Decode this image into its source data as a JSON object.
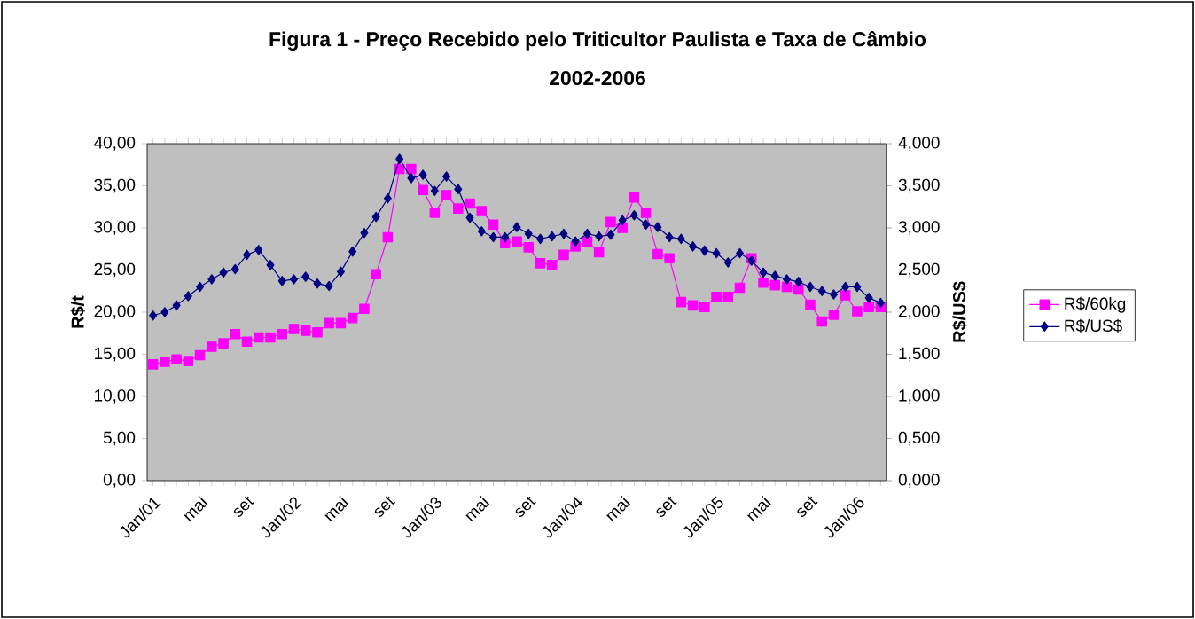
{
  "chart_data": {
    "type": "line",
    "title": "Figura 1 - Preço Recebido pelo Triticultor Paulista e Taxa de Câmbio",
    "subtitle": "2002-2006",
    "ylabel": "R$/t",
    "y2label": "R$/US$",
    "categories": [
      "Jan/01",
      null,
      null,
      null,
      "mai",
      null,
      null,
      null,
      "set",
      null,
      null,
      null,
      "Jan/02",
      null,
      null,
      null,
      "mai",
      null,
      null,
      null,
      "set",
      null,
      null,
      null,
      "Jan/03",
      null,
      null,
      null,
      "mai",
      null,
      null,
      null,
      "set",
      null,
      null,
      null,
      "Jan/04",
      null,
      null,
      null,
      "mai",
      null,
      null,
      null,
      "set",
      null,
      null,
      null,
      "Jan/05",
      null,
      null,
      null,
      "mai",
      null,
      null,
      null,
      "set",
      null,
      null,
      null,
      "Jan/06",
      null,
      null
    ],
    "series": [
      {
        "name": "R$/60kg",
        "color": "#ff00ff",
        "marker": "square",
        "values": [
          13.8,
          14.1,
          14.4,
          14.2,
          14.9,
          15.9,
          16.3,
          17.4,
          16.5,
          17.0,
          17.0,
          17.4,
          18.0,
          17.8,
          17.6,
          18.7,
          18.7,
          19.3,
          20.4,
          24.5,
          28.9,
          37.0,
          37.0,
          34.5,
          31.8,
          33.9,
          32.3,
          32.9,
          32.0,
          30.4,
          28.2,
          28.4,
          27.7,
          25.8,
          25.6,
          26.8,
          27.8,
          28.4,
          27.1,
          30.7,
          30.0,
          33.6,
          31.8,
          26.9,
          26.4,
          21.2,
          20.8,
          20.6,
          21.8,
          21.8,
          22.9,
          26.4,
          23.5,
          23.2,
          23.0,
          22.7,
          20.9,
          18.9,
          19.7,
          22.0,
          20.1,
          20.6,
          20.6
        ]
      },
      {
        "name": "R$/US$",
        "color": "#000080",
        "marker": "diamond",
        "axis": "y2",
        "values": [
          1.96,
          2.0,
          2.08,
          2.19,
          2.3,
          2.39,
          2.47,
          2.51,
          2.68,
          2.74,
          2.56,
          2.37,
          2.39,
          2.42,
          2.34,
          2.31,
          2.48,
          2.72,
          2.94,
          3.13,
          3.35,
          3.82,
          3.59,
          3.63,
          3.44,
          3.61,
          3.46,
          3.12,
          2.96,
          2.89,
          2.89,
          3.01,
          2.93,
          2.87,
          2.9,
          2.93,
          2.84,
          2.93,
          2.9,
          2.92,
          3.09,
          3.15,
          3.04,
          3.01,
          2.89,
          2.87,
          2.78,
          2.73,
          2.7,
          2.59,
          2.7,
          2.61,
          2.47,
          2.43,
          2.39,
          2.36,
          2.3,
          2.25,
          2.21,
          2.3,
          2.3,
          2.17,
          2.11
        ]
      }
    ],
    "ylim": [
      0,
      40
    ],
    "yticks": [
      {
        "value": 0,
        "label": "0,00"
      },
      {
        "value": 5,
        "label": "5,00"
      },
      {
        "value": 10,
        "label": "10,00"
      },
      {
        "value": 15,
        "label": "15,00"
      },
      {
        "value": 20,
        "label": "20,00"
      },
      {
        "value": 25,
        "label": "25,00"
      },
      {
        "value": 30,
        "label": "30,00"
      },
      {
        "value": 35,
        "label": "35,00"
      },
      {
        "value": 40,
        "label": "40,00"
      }
    ],
    "y2lim": [
      0,
      4
    ],
    "y2ticks": [
      {
        "value": 0,
        "label": "0,000"
      },
      {
        "value": 0.5,
        "label": "0,500"
      },
      {
        "value": 1,
        "label": "1,000"
      },
      {
        "value": 1.5,
        "label": "1,500"
      },
      {
        "value": 2,
        "label": "2,000"
      },
      {
        "value": 2.5,
        "label": "2,500"
      },
      {
        "value": 3,
        "label": "3,000"
      },
      {
        "value": 3.5,
        "label": "3,500"
      },
      {
        "value": 4,
        "label": "4,000"
      }
    ],
    "grid": false,
    "legend": "right",
    "line_style": "solid"
  }
}
